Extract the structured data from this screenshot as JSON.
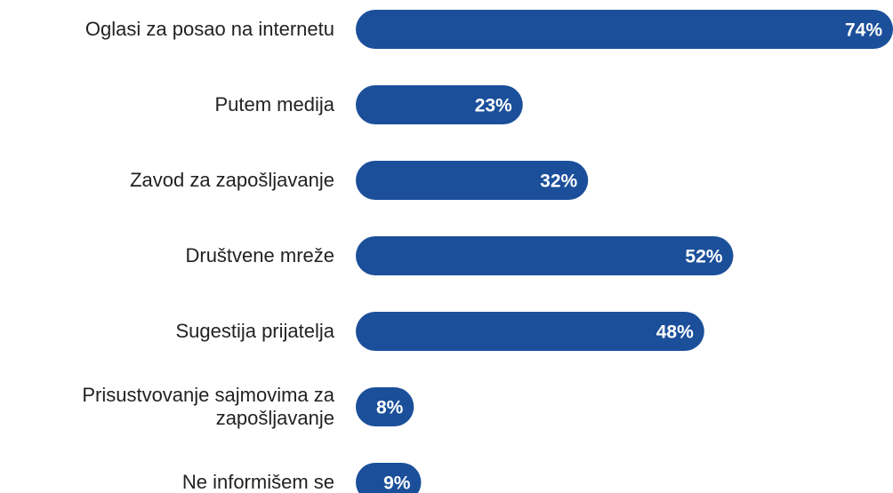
{
  "chart_data": {
    "type": "bar",
    "orientation": "horizontal",
    "categories": [
      "Oglasi za posao na internetu",
      "Putem medija",
      "Zavod za zapošljavanje",
      "Društvene mreže",
      "Sugestija prijatelja",
      "Prisustvovanje sajmovima za zapošljavanje",
      "Ne informišem se"
    ],
    "values": [
      74,
      23,
      32,
      52,
      48,
      8,
      9
    ],
    "value_labels": [
      "74%",
      "23%",
      "32%",
      "52%",
      "48%",
      "8%",
      "9%"
    ],
    "color": "#1b4f9a"
  }
}
